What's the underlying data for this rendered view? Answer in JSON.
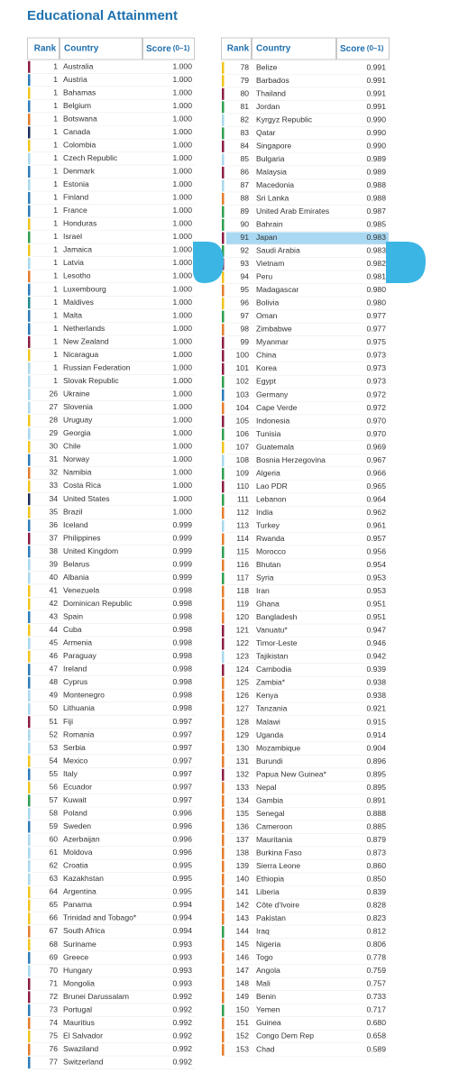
{
  "title": "Educational Attainment",
  "header": {
    "rank": "Rank",
    "country": "Country",
    "score": "Score",
    "score_range": "(0–1)"
  },
  "tables": [
    {
      "rows": [
        [
          "1",
          "Australia",
          "1.000",
          "#8c1d40"
        ],
        [
          "1",
          "Austria",
          "1.000",
          "#2b7bba"
        ],
        [
          "1",
          "Bahamas",
          "1.000",
          "#f2c41c"
        ],
        [
          "1",
          "Belgium",
          "1.000",
          "#2b7bba"
        ],
        [
          "1",
          "Botswana",
          "1.000",
          "#e37d2d"
        ],
        [
          "1",
          "Canada",
          "1.000",
          "#1d2b5c"
        ],
        [
          "1",
          "Colombia",
          "1.000",
          "#f2c41c"
        ],
        [
          "1",
          "Czech Republic",
          "1.000",
          "#a8d8ee"
        ],
        [
          "1",
          "Denmark",
          "1.000",
          "#2b7bba"
        ],
        [
          "1",
          "Estonia",
          "1.000",
          "#a8d8ee"
        ],
        [
          "1",
          "Finland",
          "1.000",
          "#2b7bba"
        ],
        [
          "1",
          "France",
          "1.000",
          "#2b7bba"
        ],
        [
          "1",
          "Honduras",
          "1.000",
          "#f2c41c"
        ],
        [
          "1",
          "Israel",
          "1.000",
          "#2f9e4f"
        ],
        [
          "1",
          "Jamaica",
          "1.000",
          "#f2c41c"
        ],
        [
          "1",
          "Latvia",
          "1.000",
          "#a8d8ee"
        ],
        [
          "1",
          "Lesotho",
          "1.000",
          "#e37d2d"
        ],
        [
          "1",
          "Luxembourg",
          "1.000",
          "#2b7bba"
        ],
        [
          "1",
          "Maldives",
          "1.000",
          "#1f8a8e"
        ],
        [
          "1",
          "Malta",
          "1.000",
          "#2b7bba"
        ],
        [
          "1",
          "Netherlands",
          "1.000",
          "#2b7bba"
        ],
        [
          "1",
          "New Zealand",
          "1.000",
          "#8c1d40"
        ],
        [
          "1",
          "Nicaragua",
          "1.000",
          "#f2c41c"
        ],
        [
          "1",
          "Russian Federation",
          "1.000",
          "#a8d8ee"
        ],
        [
          "1",
          "Slovak Republic",
          "1.000",
          "#a8d8ee"
        ],
        [
          "26",
          "Ukraine",
          "1.000",
          "#a8d8ee"
        ],
        [
          "27",
          "Slovenia",
          "1.000",
          "#a8d8ee"
        ],
        [
          "28",
          "Uruguay",
          "1.000",
          "#f2c41c"
        ],
        [
          "29",
          "Georgia",
          "1.000",
          "#a8d8ee"
        ],
        [
          "30",
          "Chile",
          "1.000",
          "#f2c41c"
        ],
        [
          "31",
          "Norway",
          "1.000",
          "#2b7bba"
        ],
        [
          "32",
          "Namibia",
          "1.000",
          "#e37d2d"
        ],
        [
          "33",
          "Costa Rica",
          "1.000",
          "#f2c41c"
        ],
        [
          "34",
          "United States",
          "1.000",
          "#1d2b5c"
        ],
        [
          "35",
          "Brazil",
          "1.000",
          "#f2c41c"
        ],
        [
          "36",
          "Iceland",
          "0.999",
          "#2b7bba"
        ],
        [
          "37",
          "Philippines",
          "0.999",
          "#8c1d40"
        ],
        [
          "38",
          "United Kingdom",
          "0.999",
          "#2b7bba"
        ],
        [
          "39",
          "Belarus",
          "0.999",
          "#a8d8ee"
        ],
        [
          "40",
          "Albania",
          "0.999",
          "#a8d8ee"
        ],
        [
          "41",
          "Venezuela",
          "0.998",
          "#f2c41c"
        ],
        [
          "42",
          "Dominican Republic",
          "0.998",
          "#f2c41c"
        ],
        [
          "43",
          "Spain",
          "0.998",
          "#2b7bba"
        ],
        [
          "44",
          "Cuba",
          "0.998",
          "#f2c41c"
        ],
        [
          "45",
          "Armenia",
          "0.998",
          "#a8d8ee"
        ],
        [
          "46",
          "Paraguay",
          "0.998",
          "#f2c41c"
        ],
        [
          "47",
          "Ireland",
          "0.998",
          "#2b7bba"
        ],
        [
          "48",
          "Cyprus",
          "0.998",
          "#2b7bba"
        ],
        [
          "49",
          "Montenegro",
          "0.998",
          "#a8d8ee"
        ],
        [
          "50",
          "Lithuania",
          "0.998",
          "#a8d8ee"
        ],
        [
          "51",
          "Fiji",
          "0.997",
          "#8c1d40"
        ],
        [
          "52",
          "Romania",
          "0.997",
          "#a8d8ee"
        ],
        [
          "53",
          "Serbia",
          "0.997",
          "#a8d8ee"
        ],
        [
          "54",
          "Mexico",
          "0.997",
          "#f2c41c"
        ],
        [
          "55",
          "Italy",
          "0.997",
          "#2b7bba"
        ],
        [
          "56",
          "Ecuador",
          "0.997",
          "#f2c41c"
        ],
        [
          "57",
          "Kuwait",
          "0.997",
          "#2f9e4f"
        ],
        [
          "58",
          "Poland",
          "0.996",
          "#a8d8ee"
        ],
        [
          "59",
          "Sweden",
          "0.996",
          "#2b7bba"
        ],
        [
          "60",
          "Azerbaijan",
          "0.996",
          "#a8d8ee"
        ],
        [
          "61",
          "Moldova",
          "0.996",
          "#a8d8ee"
        ],
        [
          "62",
          "Croatia",
          "0.995",
          "#a8d8ee"
        ],
        [
          "63",
          "Kazakhstan",
          "0.995",
          "#a8d8ee"
        ],
        [
          "64",
          "Argentina",
          "0.995",
          "#f2c41c"
        ],
        [
          "65",
          "Panama",
          "0.994",
          "#f2c41c"
        ],
        [
          "66",
          "Trinidad and Tobago*",
          "0.994",
          "#f2c41c"
        ],
        [
          "67",
          "South Africa",
          "0.994",
          "#e37d2d"
        ],
        [
          "68",
          "Suriname",
          "0.993",
          "#f2c41c"
        ],
        [
          "69",
          "Greece",
          "0.993",
          "#2b7bba"
        ],
        [
          "70",
          "Hungary",
          "0.993",
          "#a8d8ee"
        ],
        [
          "71",
          "Mongolia",
          "0.993",
          "#8c1d40"
        ],
        [
          "72",
          "Brunei Darussalam",
          "0.992",
          "#8c1d40"
        ],
        [
          "73",
          "Portugal",
          "0.992",
          "#2b7bba"
        ],
        [
          "74",
          "Mauritius",
          "0.992",
          "#e37d2d"
        ],
        [
          "75",
          "El Salvador",
          "0.992",
          "#f2c41c"
        ],
        [
          "76",
          "Swaziland",
          "0.992",
          "#e37d2d"
        ],
        [
          "77",
          "Switzerland",
          "0.992",
          "#2b7bba"
        ]
      ]
    },
    {
      "rows": [
        [
          "78",
          "Belize",
          "0.991",
          "#f2c41c"
        ],
        [
          "79",
          "Barbados",
          "0.991",
          "#f2c41c"
        ],
        [
          "80",
          "Thailand",
          "0.991",
          "#8c1d40"
        ],
        [
          "81",
          "Jordan",
          "0.991",
          "#2f9e4f"
        ],
        [
          "82",
          "Kyrgyz Republic",
          "0.990",
          "#a8d8ee"
        ],
        [
          "83",
          "Qatar",
          "0.990",
          "#2f9e4f"
        ],
        [
          "84",
          "Singapore",
          "0.990",
          "#8c1d40"
        ],
        [
          "85",
          "Bulgaria",
          "0.989",
          "#a8d8ee"
        ],
        [
          "86",
          "Malaysia",
          "0.989",
          "#8c1d40"
        ],
        [
          "87",
          "Macedonia",
          "0.988",
          "#a8d8ee"
        ],
        [
          "88",
          "Sri Lanka",
          "0.988",
          "#e37d2d"
        ],
        [
          "89",
          "United Arab Emirates",
          "0.987",
          "#2f9e4f"
        ],
        [
          "90",
          "Bahrain",
          "0.985",
          "#2f9e4f"
        ],
        [
          "91",
          "Japan",
          "0.983",
          "#8c1d40"
        ],
        [
          "92",
          "Saudi Arabia",
          "0.983",
          "#2f9e4f"
        ],
        [
          "93",
          "Vietnam",
          "0.982",
          "#8c1d40"
        ],
        [
          "94",
          "Peru",
          "0.981",
          "#f2c41c"
        ],
        [
          "95",
          "Madagascar",
          "0.980",
          "#e37d2d"
        ],
        [
          "96",
          "Bolivia",
          "0.980",
          "#f2c41c"
        ],
        [
          "97",
          "Oman",
          "0.977",
          "#2f9e4f"
        ],
        [
          "98",
          "Zimbabwe",
          "0.977",
          "#e37d2d"
        ],
        [
          "99",
          "Myanmar",
          "0.975",
          "#8c1d40"
        ],
        [
          "100",
          "China",
          "0.973",
          "#8c1d40"
        ],
        [
          "101",
          "Korea",
          "0.973",
          "#8c1d40"
        ],
        [
          "102",
          "Egypt",
          "0.973",
          "#2f9e4f"
        ],
        [
          "103",
          "Germany",
          "0.972",
          "#2b7bba"
        ],
        [
          "104",
          "Cape Verde",
          "0.972",
          "#e37d2d"
        ],
        [
          "105",
          "Indonesia",
          "0.970",
          "#8c1d40"
        ],
        [
          "106",
          "Tunisia",
          "0.970",
          "#2f9e4f"
        ],
        [
          "107",
          "Guatemala",
          "0.969",
          "#f2c41c"
        ],
        [
          "108",
          "Bosnia Herzegovina",
          "0.967",
          "#a8d8ee"
        ],
        [
          "109",
          "Algeria",
          "0.966",
          "#2f9e4f"
        ],
        [
          "110",
          "Lao PDR",
          "0.965",
          "#8c1d40"
        ],
        [
          "111",
          "Lebanon",
          "0.964",
          "#2f9e4f"
        ],
        [
          "112",
          "India",
          "0.962",
          "#e37d2d"
        ],
        [
          "113",
          "Turkey",
          "0.961",
          "#a8d8ee"
        ],
        [
          "114",
          "Rwanda",
          "0.957",
          "#e37d2d"
        ],
        [
          "115",
          "Morocco",
          "0.956",
          "#2f9e4f"
        ],
        [
          "116",
          "Bhutan",
          "0.954",
          "#e37d2d"
        ],
        [
          "117",
          "Syria",
          "0.953",
          "#2f9e4f"
        ],
        [
          "118",
          "Iran",
          "0.953",
          "#e37d2d"
        ],
        [
          "119",
          "Ghana",
          "0.951",
          "#e37d2d"
        ],
        [
          "120",
          "Bangladesh",
          "0.951",
          "#e37d2d"
        ],
        [
          "121",
          "Vanuatu*",
          "0.947",
          "#8c1d40"
        ],
        [
          "122",
          "Timor-Leste",
          "0.946",
          "#8c1d40"
        ],
        [
          "123",
          "Tajikistan",
          "0.942",
          "#a8d8ee"
        ],
        [
          "124",
          "Cambodia",
          "0.939",
          "#8c1d40"
        ],
        [
          "125",
          "Zambia*",
          "0.938",
          "#e37d2d"
        ],
        [
          "126",
          "Kenya",
          "0.938",
          "#e37d2d"
        ],
        [
          "127",
          "Tanzania",
          "0.921",
          "#e37d2d"
        ],
        [
          "128",
          "Malawi",
          "0.915",
          "#e37d2d"
        ],
        [
          "129",
          "Uganda",
          "0.914",
          "#e37d2d"
        ],
        [
          "130",
          "Mozambique",
          "0.904",
          "#e37d2d"
        ],
        [
          "131",
          "Burundi",
          "0.896",
          "#e37d2d"
        ],
        [
          "132",
          "Papua New Guinea*",
          "0.895",
          "#8c1d40"
        ],
        [
          "133",
          "Nepal",
          "0.895",
          "#e37d2d"
        ],
        [
          "134",
          "Gambia",
          "0.891",
          "#e37d2d"
        ],
        [
          "135",
          "Senegal",
          "0.888",
          "#e37d2d"
        ],
        [
          "136",
          "Cameroon",
          "0.885",
          "#e37d2d"
        ],
        [
          "137",
          "Mauritania",
          "0.879",
          "#e37d2d"
        ],
        [
          "138",
          "Burkina Faso",
          "0.873",
          "#e37d2d"
        ],
        [
          "139",
          "Sierra Leone",
          "0.860",
          "#e37d2d"
        ],
        [
          "140",
          "Ethiopia",
          "0.850",
          "#e37d2d"
        ],
        [
          "141",
          "Liberia",
          "0.839",
          "#e37d2d"
        ],
        [
          "142",
          "Côte d'Ivoire",
          "0.828",
          "#e37d2d"
        ],
        [
          "143",
          "Pakistan",
          "0.823",
          "#e37d2d"
        ],
        [
          "144",
          "Iraq",
          "0.812",
          "#2f9e4f"
        ],
        [
          "145",
          "Nigeria",
          "0.806",
          "#e37d2d"
        ],
        [
          "146",
          "Togo",
          "0.778",
          "#e37d2d"
        ],
        [
          "147",
          "Angola",
          "0.759",
          "#e37d2d"
        ],
        [
          "148",
          "Mali",
          "0.757",
          "#e37d2d"
        ],
        [
          "149",
          "Benin",
          "0.733",
          "#e37d2d"
        ],
        [
          "150",
          "Yemen",
          "0.717",
          "#2f9e4f"
        ],
        [
          "151",
          "Guinea",
          "0.680",
          "#e37d2d"
        ],
        [
          "152",
          "Congo Dem Rep",
          "0.658",
          "#e37d2d"
        ],
        [
          "153",
          "Chad",
          "0.589",
          "#e37d2d"
        ]
      ]
    }
  ]
}
